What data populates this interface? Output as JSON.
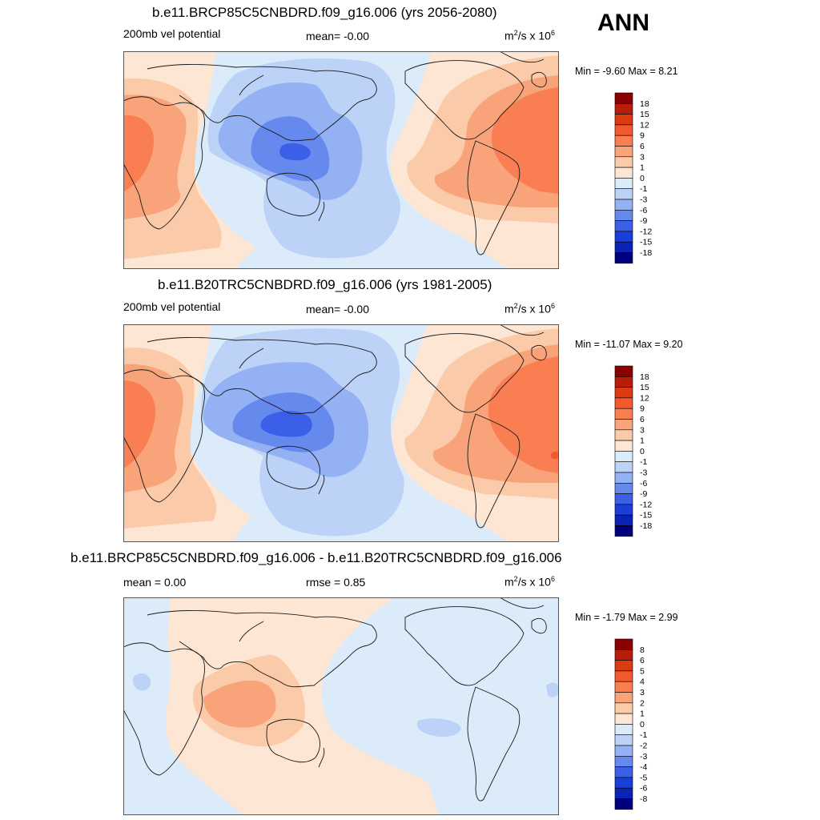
{
  "season": "ANN",
  "chart_data": [
    {
      "type": "contour-map",
      "title": "b.e11.BRCP85C5CNBDRD.f09_g16.006 (yrs 2056-2080)",
      "left_label": "200mb vel potential",
      "mean_label": "mean=  -0.00",
      "units": "m",
      "units_tail": "/s x 10",
      "units_exp2": "2",
      "units_exp6": "6",
      "min_label": "Min =  -9.60",
      "max_label": "Max =   8.21",
      "min": -9.6,
      "max": 8.21,
      "levels": [
        "18",
        "15",
        "12",
        "9",
        "6",
        "3",
        "1",
        "0",
        "-1",
        "-3",
        "-6",
        "-9",
        "-12",
        "-15",
        "-18"
      ],
      "colors": [
        "#8b0000",
        "#b81d0a",
        "#dc3a10",
        "#f3592c",
        "#f97e52",
        "#f9a37b",
        "#fbcaa8",
        "#fde6d3",
        "#dcebfa",
        "#bcd2f7",
        "#93b1f3",
        "#6689ee",
        "#3b5fe7",
        "#1a3ed8",
        "#0a23b5",
        "#00007f"
      ]
    },
    {
      "type": "contour-map",
      "title": "b.e11.B20TRC5CNBDRD.f09_g16.006 (yrs 1981-2005)",
      "left_label": "200mb vel potential",
      "mean_label": "mean=  -0.00",
      "units": "m",
      "units_tail": "/s x 10",
      "units_exp2": "2",
      "units_exp6": "6",
      "min_label": "Min = -11.07",
      "max_label": "Max =   9.20",
      "min": -11.07,
      "max": 9.2,
      "levels": [
        "18",
        "15",
        "12",
        "9",
        "6",
        "3",
        "1",
        "0",
        "-1",
        "-3",
        "-6",
        "-9",
        "-12",
        "-15",
        "-18"
      ],
      "colors": [
        "#8b0000",
        "#b81d0a",
        "#dc3a10",
        "#f3592c",
        "#f97e52",
        "#f9a37b",
        "#fbcaa8",
        "#fde6d3",
        "#dcebfa",
        "#bcd2f7",
        "#93b1f3",
        "#6689ee",
        "#3b5fe7",
        "#1a3ed8",
        "#0a23b5",
        "#00007f"
      ]
    },
    {
      "type": "contour-map",
      "title": "b.e11.BRCP85C5CNBDRD.f09_g16.006 - b.e11.B20TRC5CNBDRD.f09_g16.006",
      "left_label": "mean =   0.00",
      "mean_label": "rmse =   0.85",
      "units": "m",
      "units_tail": "/s x 10",
      "units_exp2": "2",
      "units_exp6": "6",
      "min_label": "Min =  -1.79",
      "max_label": "Max =   2.99",
      "min": -1.79,
      "max": 2.99,
      "levels": [
        "8",
        "6",
        "5",
        "4",
        "3",
        "2",
        "1",
        "0",
        "-1",
        "-2",
        "-3",
        "-4",
        "-5",
        "-6",
        "-8"
      ],
      "colors": [
        "#8b0000",
        "#b81d0a",
        "#dc3a10",
        "#f3592c",
        "#f97e52",
        "#f9a37b",
        "#fbcaa8",
        "#fde6d3",
        "#dcebfa",
        "#bcd2f7",
        "#93b1f3",
        "#6689ee",
        "#3b5fe7",
        "#1a3ed8",
        "#0a23b5",
        "#00007f"
      ]
    }
  ]
}
